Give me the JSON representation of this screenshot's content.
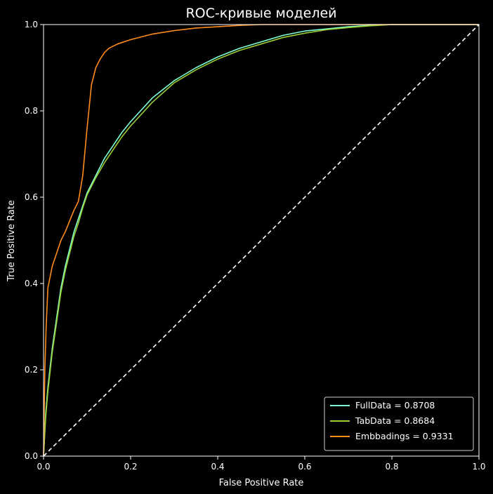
{
  "chart_data": {
    "type": "line",
    "title": "ROC-кривые моделей",
    "xlabel": "False Positive Rate",
    "ylabel": "True Positive Rate",
    "xlim": [
      0,
      1
    ],
    "ylim": [
      0,
      1
    ],
    "xticks": [
      "0.0",
      "0.2",
      "0.4",
      "0.6",
      "0.8",
      "1.0"
    ],
    "yticks": [
      "0.0",
      "0.2",
      "0.4",
      "0.6",
      "0.8",
      "1.0"
    ],
    "grid": false,
    "legend_position": "lower-right",
    "background": "#000000",
    "foreground": "#ffffff",
    "series": [
      {
        "name": "FullData = 0.8708",
        "color": "#7fffd4",
        "x": [
          0,
          0.005,
          0.01,
          0.02,
          0.03,
          0.04,
          0.05,
          0.06,
          0.07,
          0.08,
          0.09,
          0.1,
          0.12,
          0.14,
          0.16,
          0.18,
          0.2,
          0.25,
          0.3,
          0.35,
          0.4,
          0.45,
          0.5,
          0.55,
          0.6,
          0.65,
          0.7,
          0.75,
          0.8,
          1.0
        ],
        "y": [
          0,
          0.1,
          0.16,
          0.25,
          0.32,
          0.39,
          0.44,
          0.48,
          0.52,
          0.55,
          0.58,
          0.61,
          0.65,
          0.69,
          0.72,
          0.75,
          0.775,
          0.83,
          0.87,
          0.9,
          0.925,
          0.945,
          0.96,
          0.975,
          0.985,
          0.99,
          0.995,
          0.998,
          1.0,
          1.0
        ]
      },
      {
        "name": "TabData = 0.8684",
        "color": "#9acd32",
        "x": [
          0,
          0.005,
          0.01,
          0.02,
          0.03,
          0.04,
          0.05,
          0.06,
          0.07,
          0.08,
          0.09,
          0.1,
          0.12,
          0.14,
          0.16,
          0.18,
          0.2,
          0.25,
          0.3,
          0.35,
          0.4,
          0.45,
          0.5,
          0.55,
          0.6,
          0.65,
          0.7,
          0.75,
          0.8,
          1.0
        ],
        "y": [
          0,
          0.09,
          0.15,
          0.24,
          0.31,
          0.38,
          0.43,
          0.47,
          0.51,
          0.54,
          0.575,
          0.605,
          0.645,
          0.68,
          0.71,
          0.74,
          0.765,
          0.82,
          0.865,
          0.895,
          0.92,
          0.94,
          0.955,
          0.97,
          0.98,
          0.988,
          0.993,
          0.997,
          1.0,
          1.0
        ]
      },
      {
        "name": "Embbadings = 0.9331",
        "color": "#ff8c1a",
        "x": [
          0,
          0.003,
          0.006,
          0.01,
          0.02,
          0.03,
          0.04,
          0.05,
          0.06,
          0.07,
          0.08,
          0.09,
          0.1,
          0.11,
          0.12,
          0.13,
          0.14,
          0.15,
          0.17,
          0.2,
          0.25,
          0.3,
          0.35,
          0.4,
          0.45,
          0.5,
          0.55,
          1.0
        ],
        "y": [
          0,
          0.2,
          0.3,
          0.39,
          0.44,
          0.47,
          0.5,
          0.52,
          0.545,
          0.57,
          0.59,
          0.65,
          0.76,
          0.86,
          0.9,
          0.92,
          0.935,
          0.945,
          0.955,
          0.965,
          0.978,
          0.986,
          0.992,
          0.995,
          0.998,
          1.0,
          1.0,
          1.0
        ]
      },
      {
        "name": "",
        "color": "#ffffff",
        "dashed": true,
        "x": [
          0,
          1
        ],
        "y": [
          0,
          1
        ]
      }
    ]
  }
}
